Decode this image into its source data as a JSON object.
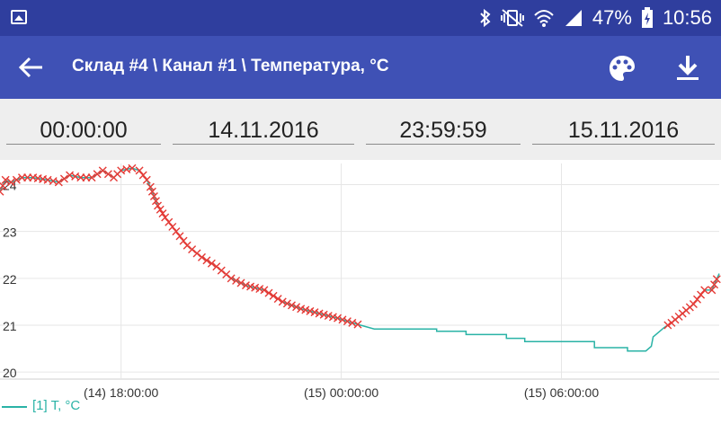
{
  "status_bar": {
    "battery": "47%",
    "time": "10:56",
    "icons": [
      "image-icon",
      "bluetooth-icon",
      "vibrate-icon",
      "wifi-icon",
      "signal-icon",
      "battery-charging-icon"
    ]
  },
  "app_bar": {
    "title": "Склад #4 \\ Канал #1 \\ Температура, °C",
    "icons": [
      "back-arrow-icon",
      "palette-icon",
      "download-icon"
    ]
  },
  "filters": {
    "start_time": "00:00:00",
    "start_date": "14.11.2016",
    "end_time": "23:59:59",
    "end_date": "15.11.2016"
  },
  "colors": {
    "status_bar": "#2f3e9e",
    "app_bar": "#3f51b5",
    "line": "#2ab3a6",
    "marker": "#e53935"
  },
  "chart_data": {
    "type": "line",
    "xlabel": "",
    "ylabel": "",
    "x_unit": "hours",
    "x_ticks": [
      {
        "x": 18,
        "label": "(14) 18:00:00"
      },
      {
        "x": 24,
        "label": "(15) 00:00:00"
      },
      {
        "x": 30,
        "label": "(15) 06:00:00"
      }
    ],
    "y_ticks": [
      20,
      21,
      22,
      23,
      24
    ],
    "xlim": [
      14.7,
      34.3
    ],
    "ylim": [
      19.85,
      24.45
    ],
    "legend": {
      "position": "bottom-left",
      "label": "[1] T, °C"
    },
    "series": [
      {
        "name": "[1] T, °C",
        "markers": "x (red) where value above threshold",
        "points": [
          [
            14.7,
            23.85
          ],
          [
            14.85,
            24.1
          ],
          [
            15.0,
            24.05
          ],
          [
            15.3,
            24.15
          ],
          [
            15.6,
            24.15
          ],
          [
            16.0,
            24.1
          ],
          [
            16.3,
            24.05
          ],
          [
            16.6,
            24.2
          ],
          [
            16.9,
            24.15
          ],
          [
            17.2,
            24.15
          ],
          [
            17.5,
            24.3
          ],
          [
            17.8,
            24.15
          ],
          [
            18.0,
            24.3
          ],
          [
            18.3,
            24.35
          ],
          [
            18.5,
            24.3
          ],
          [
            18.7,
            24.1
          ],
          [
            18.8,
            23.95
          ],
          [
            19.0,
            23.55
          ],
          [
            19.2,
            23.3
          ],
          [
            19.5,
            23.0
          ],
          [
            19.8,
            22.7
          ],
          [
            20.2,
            22.45
          ],
          [
            20.6,
            22.25
          ],
          [
            21.0,
            22.0
          ],
          [
            21.4,
            21.85
          ],
          [
            21.9,
            21.75
          ],
          [
            22.4,
            21.5
          ],
          [
            22.9,
            21.35
          ],
          [
            23.4,
            21.25
          ],
          [
            23.9,
            21.15
          ],
          [
            24.3,
            21.05
          ],
          [
            24.9,
            20.92
          ],
          [
            25.6,
            20.92
          ],
          [
            26.6,
            20.92
          ],
          [
            26.6,
            20.87
          ],
          [
            27.4,
            20.87
          ],
          [
            27.4,
            20.8
          ],
          [
            28.5,
            20.8
          ],
          [
            28.5,
            20.72
          ],
          [
            29.0,
            20.72
          ],
          [
            29.0,
            20.65
          ],
          [
            30.5,
            20.65
          ],
          [
            30.9,
            20.65
          ],
          [
            30.9,
            20.52
          ],
          [
            31.8,
            20.52
          ],
          [
            31.8,
            20.45
          ],
          [
            32.3,
            20.45
          ],
          [
            32.45,
            20.55
          ],
          [
            32.5,
            20.75
          ],
          [
            32.8,
            20.95
          ],
          [
            33.0,
            21.05
          ],
          [
            33.3,
            21.25
          ],
          [
            33.6,
            21.45
          ],
          [
            33.9,
            21.75
          ],
          [
            34.1,
            21.75
          ],
          [
            34.3,
            22.1
          ]
        ]
      }
    ]
  }
}
